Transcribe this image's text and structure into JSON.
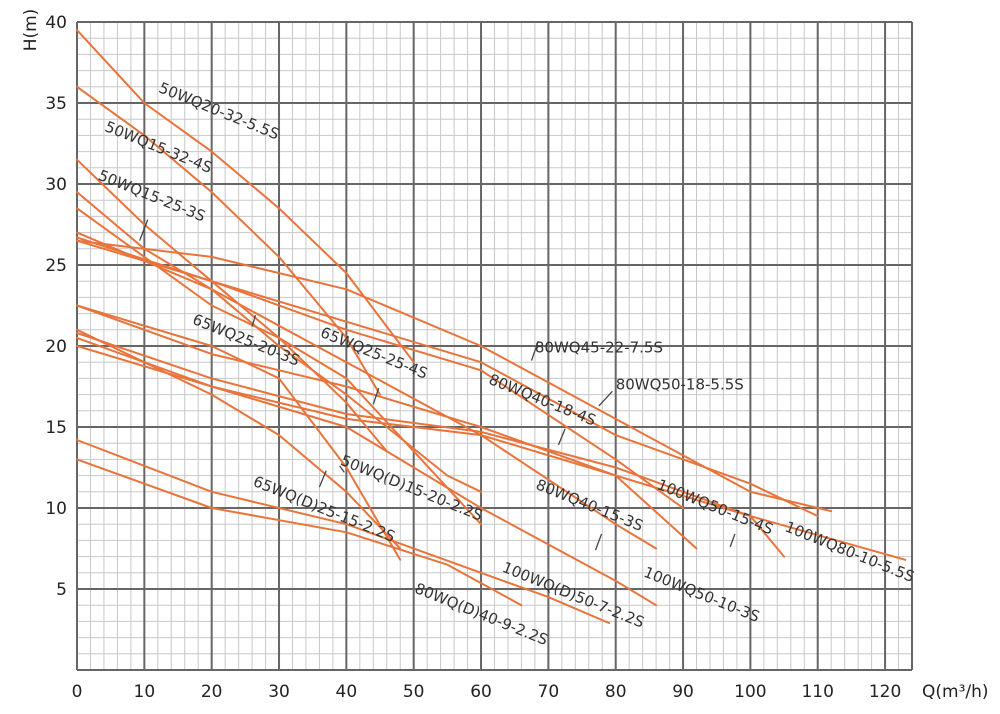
{
  "chart_data": {
    "type": "line",
    "title": "",
    "xlabel": "Q(m³/h)",
    "ylabel": "H(m)",
    "xlim": [
      0,
      124
    ],
    "ylim": [
      0,
      40
    ],
    "x_ticks": [
      "0",
      "10",
      "20",
      "30",
      "40",
      "50",
      "60",
      "70",
      "80",
      "90",
      "100",
      "110",
      "120"
    ],
    "y_ticks": [
      "5",
      "10",
      "15",
      "20",
      "25",
      "30",
      "35",
      "40"
    ],
    "grid": {
      "major": true,
      "minor": true,
      "major_x_step": 10,
      "major_y_step": 5,
      "minor_x_step": 2,
      "minor_y_step": 1
    },
    "colors": {
      "line": "#e8743b",
      "major_grid": "#666666",
      "minor_grid": "#c8c8c8",
      "text": "#222222"
    },
    "series": [
      {
        "name": "50WQ20-32-5.5S",
        "points": [
          [
            0,
            39.5
          ],
          [
            10,
            35
          ],
          [
            20,
            32
          ],
          [
            30,
            28.5
          ],
          [
            40,
            24.5
          ],
          [
            50,
            19
          ]
        ]
      },
      {
        "name": "50WQ15-32-4S",
        "points": [
          [
            0,
            36
          ],
          [
            10,
            33
          ],
          [
            20,
            29.5
          ],
          [
            30,
            25.5
          ],
          [
            40,
            20.5
          ],
          [
            45,
            17
          ]
        ]
      },
      {
        "name": "50WQ15-25-3S",
        "points": [
          [
            0,
            31.5
          ],
          [
            10,
            27.5
          ],
          [
            20,
            24
          ],
          [
            30,
            20.5
          ],
          [
            40,
            16.5
          ],
          [
            46,
            13.5
          ]
        ]
      },
      {
        "name": "65WQ25-20-3S",
        "points": [
          [
            0,
            29.5
          ],
          [
            10,
            26
          ],
          [
            20,
            23.5
          ],
          [
            30,
            20
          ],
          [
            40,
            17
          ],
          [
            55,
            12
          ],
          [
            60,
            11
          ]
        ]
      },
      {
        "name": "65WQ25-25-4S",
        "points": [
          [
            0,
            28.5
          ],
          [
            10,
            25.5
          ],
          [
            20,
            22.5
          ],
          [
            30,
            20.5
          ],
          [
            40,
            18
          ],
          [
            50,
            13.5
          ],
          [
            60,
            9
          ]
        ]
      },
      {
        "name": "80WQ45-22-7.5S",
        "points": [
          [
            0,
            26.5
          ],
          [
            20,
            25.5
          ],
          [
            40,
            23.5
          ],
          [
            60,
            20
          ],
          [
            80,
            15.5
          ],
          [
            100,
            11
          ],
          [
            112,
            9.8
          ]
        ]
      },
      {
        "name": "80WQ50-18-5.5S",
        "points": [
          [
            0,
            26.5
          ],
          [
            20,
            24
          ],
          [
            40,
            21.5
          ],
          [
            60,
            19
          ],
          [
            80,
            14.5
          ],
          [
            100,
            11.5
          ],
          [
            110,
            9.5
          ]
        ]
      },
      {
        "name": "80WQ40-18-4S",
        "points": [
          [
            0,
            26.7
          ],
          [
            20,
            24
          ],
          [
            40,
            21
          ],
          [
            60,
            18.5
          ],
          [
            80,
            13
          ],
          [
            90,
            10
          ]
        ]
      },
      {
        "name": "80WQ40-15-3S",
        "points": [
          [
            0,
            27
          ],
          [
            20,
            23.5
          ],
          [
            40,
            19
          ],
          [
            60,
            14.5
          ],
          [
            80,
            9
          ],
          [
            86,
            7.5
          ]
        ]
      },
      {
        "name": "100WQ50-15-4S",
        "points": [
          [
            0,
            22.5
          ],
          [
            20,
            19.5
          ],
          [
            40,
            17.5
          ],
          [
            60,
            15
          ],
          [
            80,
            12
          ],
          [
            92,
            7.5
          ]
        ]
      },
      {
        "name": "100WQ50-10-3S",
        "points": [
          [
            0,
            20.5
          ],
          [
            20,
            17.5
          ],
          [
            40,
            15.5
          ],
          [
            60,
            14.5
          ],
          [
            80,
            12
          ],
          [
            100,
            9.5
          ],
          [
            105,
            7
          ]
        ]
      },
      {
        "name": "100WQ80-10-5.5S",
        "points": [
          [
            0,
            20.8
          ],
          [
            20,
            18
          ],
          [
            40,
            15.8
          ],
          [
            60,
            14.7
          ],
          [
            80,
            12.5
          ],
          [
            100,
            9.5
          ],
          [
            123,
            6.8
          ]
        ]
      },
      {
        "name": "100WQ(D)50-7-2.2S",
        "points": [
          [
            0,
            20
          ],
          [
            20,
            17.5
          ],
          [
            40,
            15
          ],
          [
            60,
            10
          ],
          [
            80,
            5.5
          ],
          [
            86,
            4
          ]
        ]
      },
      {
        "name": "50WQ(D)15-20-2.2S",
        "points": [
          [
            0,
            22.5
          ],
          [
            20,
            20
          ],
          [
            30,
            18
          ],
          [
            40,
            12.5
          ],
          [
            48,
            6.8
          ]
        ]
      },
      {
        "name": "65WQ(D)25-15-2.2S",
        "points": [
          [
            0,
            21
          ],
          [
            20,
            17
          ],
          [
            30,
            14.5
          ],
          [
            40,
            11
          ],
          [
            48,
            7.5
          ]
        ]
      },
      {
        "name": "80WQ(D)40-9-2.2S",
        "points": [
          [
            0,
            14.2
          ],
          [
            20,
            11
          ],
          [
            40,
            9
          ],
          [
            60,
            6
          ],
          [
            70,
            4.5
          ],
          [
            79,
            2.9
          ]
        ]
      },
      {
        "name": "80WQ(D)40-9-2.2S",
        "points": [
          [
            0,
            13
          ],
          [
            20,
            10
          ],
          [
            40,
            8.5
          ],
          [
            55,
            6.5
          ],
          [
            66,
            4
          ]
        ]
      }
    ],
    "labels": [
      {
        "text": "50WQ20-32-5.5S",
        "x": 12,
        "y": 35.7,
        "angle": 22
      },
      {
        "text": "50WQ15-32-4S",
        "x": 4,
        "y": 33.3,
        "angle": 22
      },
      {
        "text": "50WQ15-25-3S",
        "x": 3,
        "y": 30.3,
        "angle": 22
      },
      {
        "text": "65WQ25-20-3S",
        "x": 17,
        "y": 21.4,
        "angle": 22
      },
      {
        "text": "65WQ25-25-4S",
        "x": 36,
        "y": 20.6,
        "angle": 22
      },
      {
        "text": "80WQ45-22-7.5S",
        "x": 68,
        "y": 19.6,
        "angle": 0
      },
      {
        "text": "80WQ50-18-5.5S",
        "x": 80,
        "y": 17.3,
        "angle": 0
      },
      {
        "text": "80WQ40-18-4S",
        "x": 61,
        "y": 17.7,
        "angle": 22
      },
      {
        "text": "50WQ(D)15-20-2.2S",
        "x": 39,
        "y": 12.7,
        "angle": 22
      },
      {
        "text": "65WQ(D)25-15-2.2S",
        "x": 26,
        "y": 11.4,
        "angle": 22
      },
      {
        "text": "80WQ40-15-3S",
        "x": 68,
        "y": 11.2,
        "angle": 22
      },
      {
        "text": "100WQ50-15-4S",
        "x": 86,
        "y": 11.2,
        "angle": 22
      },
      {
        "text": "100WQ80-10-5.5S",
        "x": 105,
        "y": 8.6,
        "angle": 22
      },
      {
        "text": "100WQ(D)50-7-2.2S",
        "x": 63,
        "y": 6.1,
        "angle": 22
      },
      {
        "text": "100WQ50-10-3S",
        "x": 84,
        "y": 5.8,
        "angle": 22
      },
      {
        "text": "80WQ(D)40-9-2.2S",
        "x": 50,
        "y": 4.8,
        "angle": 22
      }
    ],
    "leaders": [
      [
        [
          9.3,
          26.5
        ],
        [
          10.5,
          27.8
        ]
      ],
      [
        [
          26,
          21.2
        ],
        [
          26.5,
          21.9
        ]
      ],
      [
        [
          44,
          16.4
        ],
        [
          44.8,
          17.4
        ]
      ],
      [
        [
          67.5,
          19.1
        ],
        [
          68.5,
          20.3
        ]
      ],
      [
        [
          77.5,
          16.3
        ],
        [
          79.5,
          17.2
        ]
      ],
      [
        [
          71.5,
          13.9
        ],
        [
          72.5,
          14.9
        ]
      ],
      [
        [
          36,
          11.3
        ],
        [
          37,
          12.3
        ]
      ],
      [
        [
          39,
          12.6
        ],
        [
          39.7,
          12.2
        ]
      ],
      [
        [
          77,
          7.4
        ],
        [
          77.9,
          8.4
        ]
      ],
      [
        [
          97,
          7.6
        ],
        [
          97.7,
          8.4
        ]
      ]
    ]
  }
}
